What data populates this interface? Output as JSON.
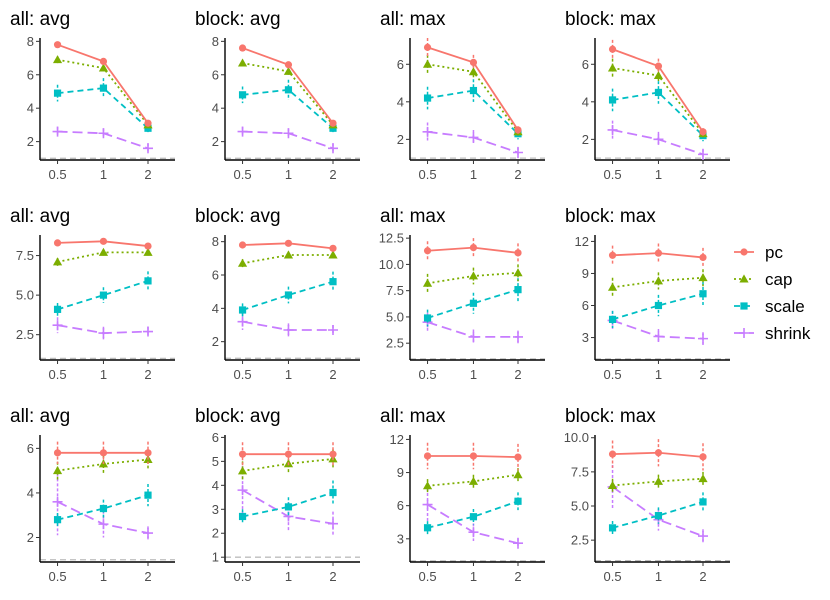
{
  "chart_data": {
    "type": "line",
    "x": [
      0.5,
      1,
      2
    ],
    "x_tick_labels": [
      "0.5",
      "1",
      "2"
    ],
    "reference_line": 1,
    "legend": {
      "position": "right",
      "entries": [
        {
          "name": "pc",
          "color": "#F8766D",
          "marker": "circle",
          "line": "solid"
        },
        {
          "name": "cap",
          "color": "#7CAE00",
          "marker": "triangle",
          "line": "dotted"
        },
        {
          "name": "scale",
          "color": "#00BFC4",
          "marker": "square",
          "line": "dashed"
        },
        {
          "name": "shrink",
          "color": "#C77CFF",
          "marker": "plus",
          "line": "longdash"
        }
      ]
    },
    "panels": [
      {
        "title": "all: avg",
        "ylim": [
          0.9,
          8.2
        ],
        "yticks": [
          2,
          4,
          6,
          8
        ],
        "ytick_labels": [
          "2",
          "4",
          "6",
          "8"
        ],
        "series": [
          {
            "name": "pc",
            "values": [
              7.8,
              6.8,
              3.1
            ],
            "err": [
              0.15,
              0.15,
              0.15
            ]
          },
          {
            "name": "cap",
            "values": [
              6.9,
              6.4,
              3.0
            ],
            "err": [
              0.2,
              0.2,
              0.15
            ]
          },
          {
            "name": "scale",
            "values": [
              4.9,
              5.2,
              2.8
            ],
            "err": [
              0.5,
              0.6,
              0.25
            ]
          },
          {
            "name": "shrink",
            "values": [
              2.6,
              2.5,
              1.6
            ],
            "err": [
              0.3,
              0.3,
              0.3
            ]
          }
        ]
      },
      {
        "title": "block: avg",
        "ylim": [
          0.9,
          8.2
        ],
        "yticks": [
          2,
          4,
          6,
          8
        ],
        "ytick_labels": [
          "2",
          "4",
          "6",
          "8"
        ],
        "series": [
          {
            "name": "pc",
            "values": [
              7.6,
              6.6,
              3.1
            ],
            "err": [
              0.15,
              0.15,
              0.15
            ]
          },
          {
            "name": "cap",
            "values": [
              6.7,
              6.2,
              3.0
            ],
            "err": [
              0.2,
              0.2,
              0.15
            ]
          },
          {
            "name": "scale",
            "values": [
              4.8,
              5.1,
              2.8
            ],
            "err": [
              0.5,
              0.6,
              0.25
            ]
          },
          {
            "name": "shrink",
            "values": [
              2.6,
              2.5,
              1.6
            ],
            "err": [
              0.3,
              0.3,
              0.3
            ]
          }
        ]
      },
      {
        "title": "all: max",
        "ylim": [
          0.9,
          7.4
        ],
        "yticks": [
          2,
          4,
          6
        ],
        "ytick_labels": [
          "2",
          "4",
          "6"
        ],
        "series": [
          {
            "name": "pc",
            "values": [
              6.9,
              6.1,
              2.5
            ],
            "err": [
              0.5,
              0.4,
              0.2
            ]
          },
          {
            "name": "cap",
            "values": [
              6.0,
              5.6,
              2.4
            ],
            "err": [
              0.5,
              0.4,
              0.2
            ]
          },
          {
            "name": "scale",
            "values": [
              4.2,
              4.6,
              2.3
            ],
            "err": [
              0.6,
              0.6,
              0.3
            ]
          },
          {
            "name": "shrink",
            "values": [
              2.4,
              2.1,
              1.3
            ],
            "err": [
              0.5,
              0.4,
              0.3
            ]
          }
        ]
      },
      {
        "title": "block: max",
        "ylim": [
          0.9,
          7.4
        ],
        "yticks": [
          2,
          4,
          6
        ],
        "ytick_labels": [
          "2",
          "4",
          "6"
        ],
        "series": [
          {
            "name": "pc",
            "values": [
              6.8,
              5.9,
              2.4
            ],
            "err": [
              0.5,
              0.4,
              0.2
            ]
          },
          {
            "name": "cap",
            "values": [
              5.8,
              5.4,
              2.3
            ],
            "err": [
              0.5,
              0.4,
              0.2
            ]
          },
          {
            "name": "scale",
            "values": [
              4.1,
              4.5,
              2.2
            ],
            "err": [
              0.6,
              0.6,
              0.3
            ]
          },
          {
            "name": "shrink",
            "values": [
              2.5,
              2.0,
              1.2
            ],
            "err": [
              0.5,
              0.4,
              0.3
            ]
          }
        ]
      },
      {
        "title": "all: avg",
        "ylim": [
          0.9,
          8.8
        ],
        "yticks": [
          2.5,
          5.0,
          7.5
        ],
        "ytick_labels": [
          "2.5",
          "5.0",
          "7.5"
        ],
        "series": [
          {
            "name": "pc",
            "values": [
              8.3,
              8.4,
              8.1
            ],
            "err": [
              0.15,
              0.15,
              0.15
            ]
          },
          {
            "name": "cap",
            "values": [
              7.1,
              7.7,
              7.7
            ],
            "err": [
              0.25,
              0.2,
              0.2
            ]
          },
          {
            "name": "scale",
            "values": [
              4.1,
              5.0,
              5.9
            ],
            "err": [
              0.4,
              0.5,
              0.6
            ]
          },
          {
            "name": "shrink",
            "values": [
              3.1,
              2.6,
              2.7
            ],
            "err": [
              0.5,
              0.4,
              0.3
            ]
          }
        ]
      },
      {
        "title": "block: avg",
        "ylim": [
          0.9,
          8.4
        ],
        "yticks": [
          2,
          4,
          6,
          8
        ],
        "ytick_labels": [
          "2",
          "4",
          "6",
          "8"
        ],
        "series": [
          {
            "name": "pc",
            "values": [
              7.8,
              7.9,
              7.6
            ],
            "err": [
              0.15,
              0.15,
              0.15
            ]
          },
          {
            "name": "cap",
            "values": [
              6.7,
              7.2,
              7.2
            ],
            "err": [
              0.25,
              0.2,
              0.2
            ]
          },
          {
            "name": "scale",
            "values": [
              3.9,
              4.8,
              5.6
            ],
            "err": [
              0.4,
              0.5,
              0.6
            ]
          },
          {
            "name": "shrink",
            "values": [
              3.2,
              2.7,
              2.7
            ],
            "err": [
              0.5,
              0.4,
              0.3
            ]
          }
        ]
      },
      {
        "title": "all: max",
        "ylim": [
          0.9,
          12.8
        ],
        "yticks": [
          2.5,
          5.0,
          7.5,
          10.0,
          12.5
        ],
        "ytick_labels": [
          "2.5",
          "5.0",
          "7.5",
          "10.0",
          "12.5"
        ],
        "series": [
          {
            "name": "pc",
            "values": [
              11.3,
              11.6,
              11.1
            ],
            "err": [
              0.9,
              0.9,
              0.9
            ]
          },
          {
            "name": "cap",
            "values": [
              8.2,
              8.9,
              9.2
            ],
            "err": [
              0.9,
              0.8,
              0.8
            ]
          },
          {
            "name": "scale",
            "values": [
              4.9,
              6.3,
              7.6
            ],
            "err": [
              0.8,
              1.0,
              1.1
            ]
          },
          {
            "name": "shrink",
            "values": [
              4.5,
              3.1,
              3.1
            ],
            "err": [
              0.9,
              0.7,
              0.6
            ]
          }
        ]
      },
      {
        "title": "block: max",
        "ylim": [
          0.9,
          12.6
        ],
        "yticks": [
          3,
          6,
          9,
          12
        ],
        "ytick_labels": [
          "3",
          "6",
          "9",
          "12"
        ],
        "series": [
          {
            "name": "pc",
            "values": [
              10.7,
              10.9,
              10.5
            ],
            "err": [
              0.9,
              0.9,
              0.9
            ]
          },
          {
            "name": "cap",
            "values": [
              7.7,
              8.3,
              8.6
            ],
            "err": [
              0.9,
              0.8,
              0.8
            ]
          },
          {
            "name": "scale",
            "values": [
              4.7,
              6.0,
              7.1
            ],
            "err": [
              0.8,
              1.0,
              1.1
            ]
          },
          {
            "name": "shrink",
            "values": [
              4.6,
              3.1,
              2.9
            ],
            "err": [
              0.9,
              0.7,
              0.6
            ]
          }
        ]
      },
      {
        "title": "all: avg",
        "ylim": [
          0.9,
          6.6
        ],
        "yticks": [
          2,
          4,
          6
        ],
        "ytick_labels": [
          "2",
          "4",
          "6"
        ],
        "series": [
          {
            "name": "pc",
            "values": [
              5.8,
              5.8,
              5.8
            ],
            "err": [
              0.5,
              0.5,
              0.5
            ]
          },
          {
            "name": "cap",
            "values": [
              5.0,
              5.3,
              5.5
            ],
            "err": [
              0.4,
              0.4,
              0.4
            ]
          },
          {
            "name": "scale",
            "values": [
              2.8,
              3.3,
              3.9
            ],
            "err": [
              0.3,
              0.4,
              0.5
            ]
          },
          {
            "name": "shrink",
            "values": [
              3.6,
              2.6,
              2.2
            ],
            "err": [
              1.5,
              0.6,
              0.3
            ]
          }
        ]
      },
      {
        "title": "block: avg",
        "ylim": [
          0.8,
          6.1
        ],
        "yticks": [
          1,
          2,
          3,
          4,
          5,
          6
        ],
        "ytick_labels": [
          "1",
          "2",
          "3",
          "4",
          "5",
          "6"
        ],
        "series": [
          {
            "name": "pc",
            "values": [
              5.3,
              5.3,
              5.3
            ],
            "err": [
              0.5,
              0.5,
              0.5
            ]
          },
          {
            "name": "cap",
            "values": [
              4.6,
              4.9,
              5.1
            ],
            "err": [
              0.4,
              0.4,
              0.4
            ]
          },
          {
            "name": "scale",
            "values": [
              2.7,
              3.1,
              3.7
            ],
            "err": [
              0.3,
              0.4,
              0.5
            ]
          },
          {
            "name": "shrink",
            "values": [
              3.8,
              2.7,
              2.4
            ],
            "err": [
              1.0,
              0.6,
              0.5
            ]
          }
        ]
      },
      {
        "title": "all: max",
        "ylim": [
          0.9,
          12.4
        ],
        "yticks": [
          3,
          6,
          9,
          12
        ],
        "ytick_labels": [
          "3",
          "6",
          "9",
          "12"
        ],
        "series": [
          {
            "name": "pc",
            "values": [
              10.5,
              10.5,
              10.4
            ],
            "err": [
              1.2,
              1.2,
              1.2
            ]
          },
          {
            "name": "cap",
            "values": [
              7.8,
              8.2,
              8.8
            ],
            "err": [
              0.6,
              0.6,
              0.6
            ]
          },
          {
            "name": "scale",
            "values": [
              4.0,
              5.0,
              6.4
            ],
            "err": [
              0.6,
              0.7,
              0.8
            ]
          },
          {
            "name": "shrink",
            "values": [
              6.1,
              3.6,
              2.6
            ],
            "err": [
              1.5,
              0.8,
              0.5
            ]
          }
        ]
      },
      {
        "title": "block: max",
        "ylim": [
          0.9,
          10.2
        ],
        "yticks": [
          2.5,
          5.0,
          7.5,
          10.0
        ],
        "ytick_labels": [
          "2.5",
          "5.0",
          "7.5",
          "10.0"
        ],
        "series": [
          {
            "name": "pc",
            "values": [
              8.8,
              8.9,
              8.6
            ],
            "err": [
              1.0,
              1.0,
              1.0
            ]
          },
          {
            "name": "cap",
            "values": [
              6.5,
              6.8,
              7.0
            ],
            "err": [
              0.5,
              0.5,
              0.5
            ]
          },
          {
            "name": "scale",
            "values": [
              3.4,
              4.3,
              5.3
            ],
            "err": [
              0.5,
              0.6,
              0.7
            ]
          },
          {
            "name": "shrink",
            "values": [
              6.4,
              4.0,
              2.8
            ],
            "err": [
              1.6,
              0.8,
              0.5
            ]
          }
        ]
      }
    ]
  }
}
